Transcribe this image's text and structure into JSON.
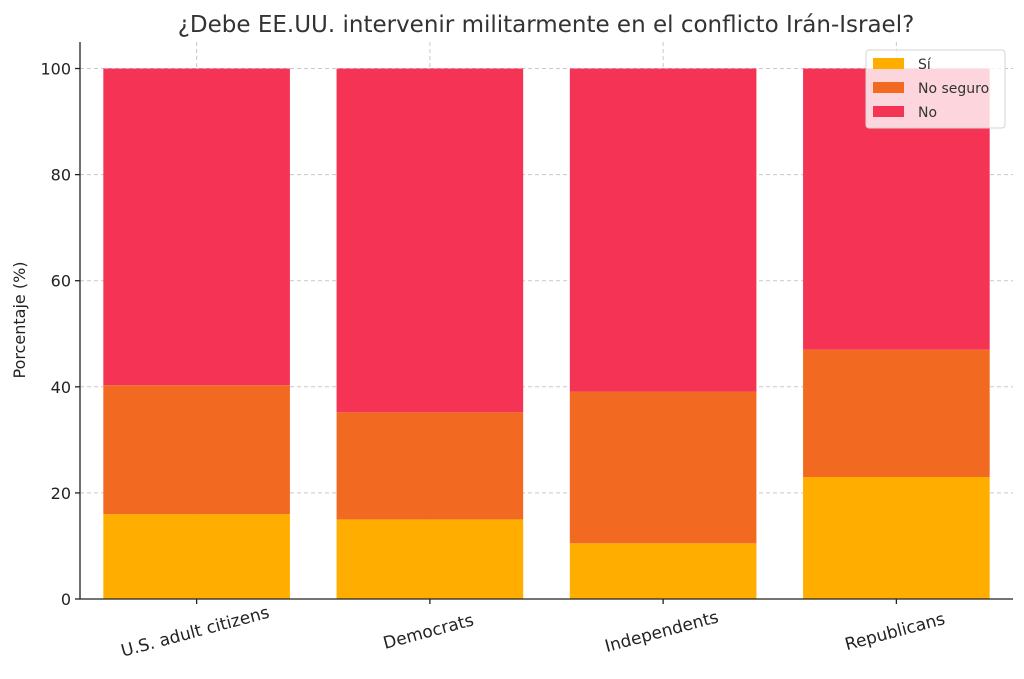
{
  "chart_data": {
    "type": "bar",
    "stacked": true,
    "title": "¿Debe EE.UU. intervenir militarmente en el conflicto Irán-Israel?",
    "xlabel": "",
    "ylabel": "Porcentaje (%)",
    "ylim": [
      0,
      105
    ],
    "yticks": [
      0,
      20,
      40,
      60,
      80,
      100
    ],
    "categories": [
      "U.S. adult citizens",
      "Democrats",
      "Independents",
      "Republicans"
    ],
    "series": [
      {
        "name": "Sí",
        "color": "#FFAE00",
        "values": [
          16,
          15,
          10.5,
          23
        ]
      },
      {
        "name": "No seguro",
        "color": "#F26A22",
        "values": [
          24.3,
          20.2,
          28.6,
          24
        ]
      },
      {
        "name": "No",
        "color": "#F53355",
        "values": [
          59.7,
          64.8,
          60.9,
          53
        ]
      }
    ],
    "grid": true,
    "legend_position": "top-right"
  }
}
